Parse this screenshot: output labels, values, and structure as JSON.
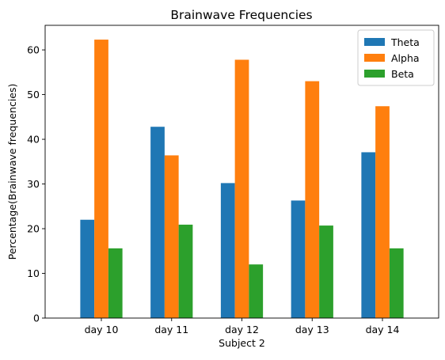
{
  "chart_data": {
    "type": "bar",
    "title": "Brainwave Frequencies",
    "xlabel": "Subject 2",
    "ylabel": "Percentage(Brainwave frequencies)",
    "categories": [
      "day 10",
      "day 11",
      "day 12",
      "day 13",
      "day 14"
    ],
    "series": [
      {
        "name": "Theta",
        "color": "#1f77b4",
        "values": [
          22.0,
          42.8,
          30.2,
          26.3,
          37.1
        ]
      },
      {
        "name": "Alpha",
        "color": "#ff7f0e",
        "values": [
          62.3,
          36.4,
          57.8,
          53.0,
          47.4
        ]
      },
      {
        "name": "Beta",
        "color": "#2ca02c",
        "values": [
          15.6,
          20.9,
          12.0,
          20.7,
          15.6
        ]
      }
    ],
    "ylim": [
      0,
      65.5
    ],
    "yticks": [
      0,
      10,
      20,
      30,
      40,
      50,
      60
    ],
    "grid": false,
    "legend_position": "top-right"
  }
}
